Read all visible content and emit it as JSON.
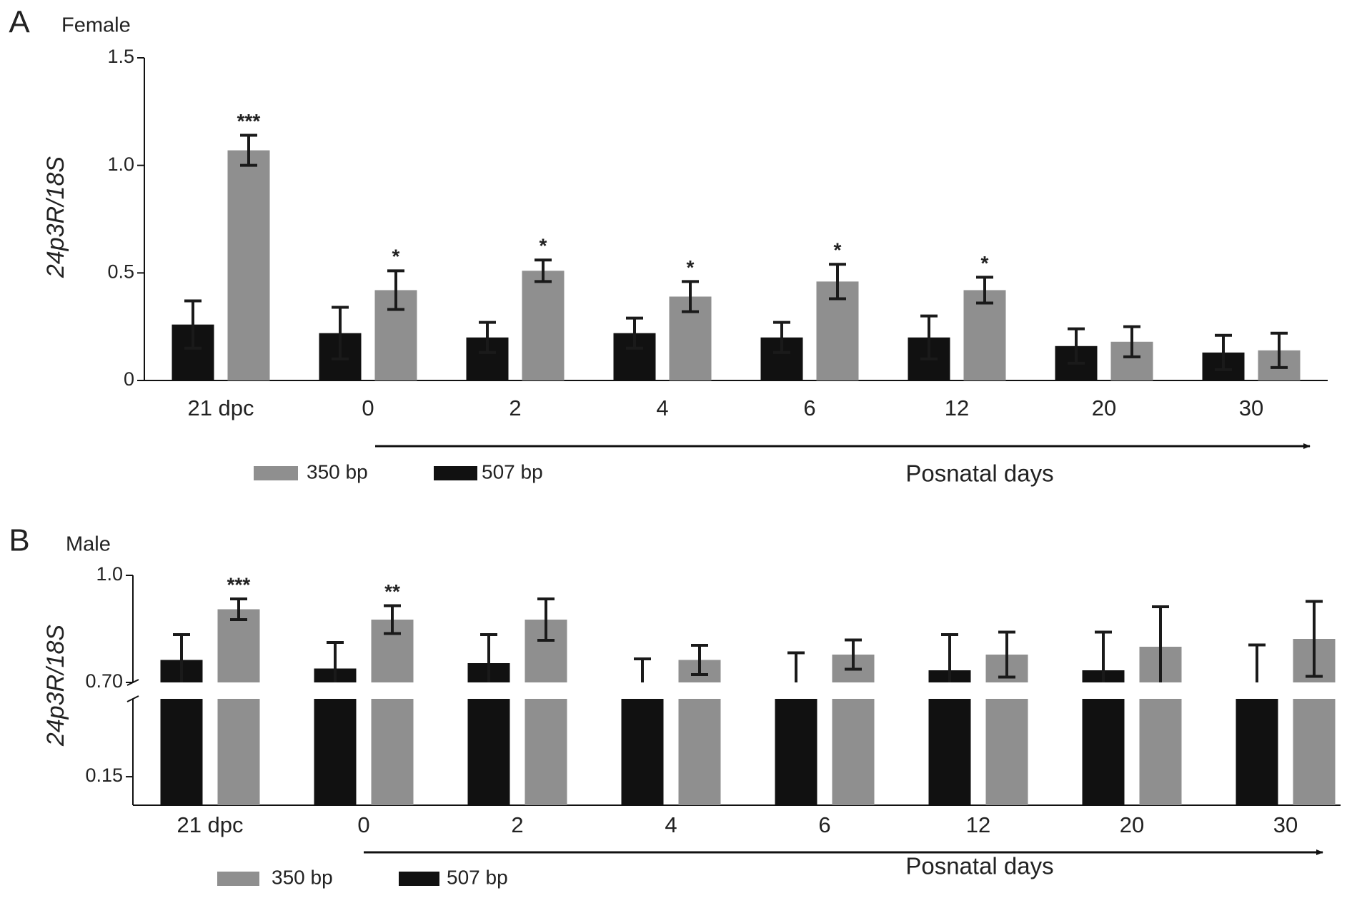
{
  "chart_data": [
    {
      "type": "bar",
      "panel": "A",
      "subtitle": "Female",
      "y_label": "24p3R/18S",
      "x_label": "Posnatal days",
      "categories": [
        "21 dpc",
        "0",
        "2",
        "4",
        "6",
        "12",
        "20",
        "30"
      ],
      "series": [
        {
          "name": "350 bp",
          "color": "#8f8f8f",
          "values": [
            1.07,
            0.42,
            0.51,
            0.39,
            0.46,
            0.42,
            0.18,
            0.14
          ],
          "errors": [
            0.07,
            0.09,
            0.05,
            0.07,
            0.08,
            0.06,
            0.07,
            0.08
          ],
          "annotations": [
            "***",
            "*",
            "*",
            "*",
            "*",
            "*",
            null,
            null
          ]
        },
        {
          "name": "507 bp",
          "color": "#111111",
          "values": [
            0.26,
            0.22,
            0.2,
            0.22,
            0.2,
            0.2,
            0.16,
            0.13
          ],
          "errors": [
            0.11,
            0.12,
            0.07,
            0.07,
            0.07,
            0.1,
            0.08,
            0.08
          ]
        }
      ],
      "ylim": [
        0,
        1.5
      ],
      "yticks": [
        0,
        0.5,
        {
          "value": 1,
          "label": "1.0"
        },
        1.5
      ]
    },
    {
      "type": "bar",
      "panel": "B",
      "subtitle": "Male",
      "y_label": "24p3R/18S",
      "x_label": "Posnatal days",
      "categories": [
        "21 dpc",
        "0",
        "2",
        "4",
        "6",
        "12",
        "20",
        "30"
      ],
      "series": [
        {
          "name": "350 bp",
          "color": "#8f8f8f",
          "values": [
            0.905,
            0.876,
            0.876,
            0.763,
            0.778,
            0.778,
            0.8,
            0.822
          ],
          "errors": [
            0.029,
            0.039,
            0.058,
            0.041,
            0.041,
            0.063,
            0.112,
            0.105
          ],
          "annotations": [
            "***",
            "**",
            null,
            null,
            null,
            null,
            null,
            null
          ]
        },
        {
          "name": "507 bp",
          "color": "#111111",
          "values": [
            0.763,
            0.739,
            0.754,
            0.68,
            0.68,
            0.734,
            0.734,
            0.68
          ],
          "errors": [
            0.071,
            0.073,
            0.08,
            0.086,
            0.103,
            0.1,
            0.107,
            0.125
          ]
        }
      ],
      "ylim": [
        0,
        1
      ],
      "ybreak": [
        0.56,
        0.7
      ],
      "yticks": [
        0.15,
        {
          "value": 0.7,
          "label": "0.70"
        },
        {
          "value": 1,
          "label": "1.0"
        }
      ]
    }
  ]
}
